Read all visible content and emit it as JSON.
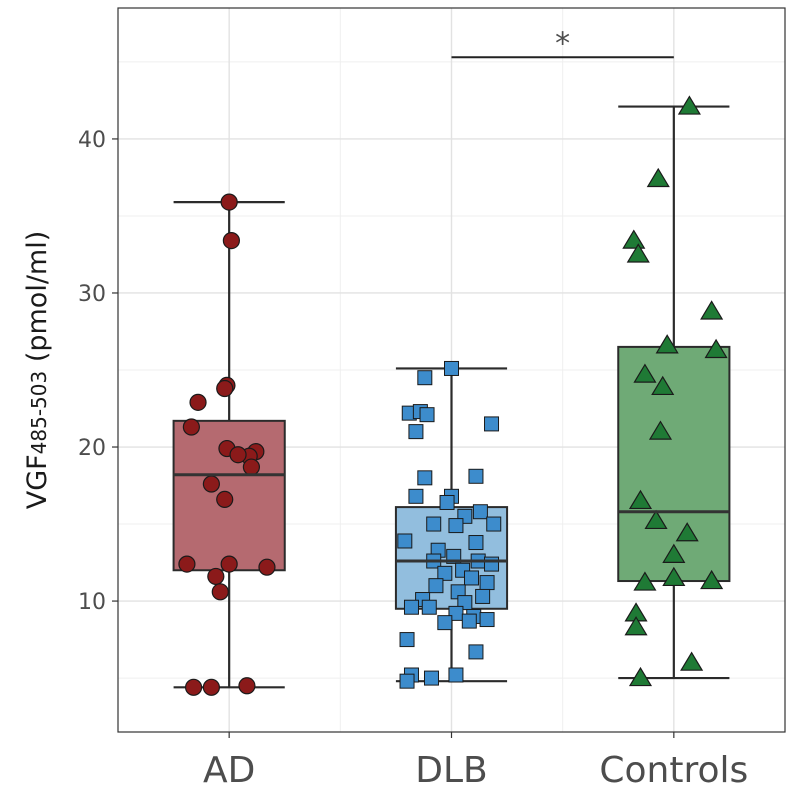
{
  "chart_data": {
    "type": "box",
    "ylabel_main": "VGF",
    "ylabel_sub": "485-503",
    "ylabel_unit": " (pmol/ml)",
    "ylim": [
      1.5,
      48.5
    ],
    "y_ticks": [
      10,
      20,
      30,
      40
    ],
    "categories": [
      "AD",
      "DLB",
      "Controls"
    ],
    "significance": {
      "from": "DLB",
      "to": "Controls",
      "y": 45.3,
      "label": "*"
    },
    "grid": true,
    "groups": [
      {
        "name": "AD",
        "fill": "#b56a70",
        "point_fill": "#8b1a1a",
        "marker": "circle",
        "whisker_low": 4.4,
        "q1": 12.0,
        "median": 18.2,
        "q3": 21.7,
        "whisker_high": 35.9,
        "points": [
          [
            -0.16,
            4.4
          ],
          [
            -0.08,
            4.4
          ],
          [
            0.08,
            4.5
          ],
          [
            0.0,
            35.9
          ],
          [
            0.01,
            33.4
          ],
          [
            -0.14,
            22.9
          ],
          [
            -0.01,
            24.0
          ],
          [
            -0.02,
            23.8
          ],
          [
            -0.17,
            21.3
          ],
          [
            -0.01,
            19.9
          ],
          [
            0.12,
            19.7
          ],
          [
            0.09,
            19.4
          ],
          [
            0.04,
            19.5
          ],
          [
            0.1,
            18.7
          ],
          [
            -0.08,
            17.6
          ],
          [
            -0.02,
            16.6
          ],
          [
            -0.19,
            12.4
          ],
          [
            0.0,
            12.4
          ],
          [
            0.17,
            12.2
          ],
          [
            -0.06,
            11.6
          ],
          [
            -0.04,
            10.6
          ]
        ]
      },
      {
        "name": "DLB",
        "fill": "#92bede",
        "point_fill": "#3d8ccc",
        "marker": "square",
        "whisker_low": 4.8,
        "q1": 9.5,
        "median": 12.6,
        "q3": 16.1,
        "whisker_high": 25.1,
        "points": [
          [
            0.0,
            25.1
          ],
          [
            -0.12,
            24.5
          ],
          [
            -0.19,
            22.2
          ],
          [
            -0.14,
            22.3
          ],
          [
            -0.11,
            22.1
          ],
          [
            -0.16,
            21.0
          ],
          [
            0.18,
            21.5
          ],
          [
            -0.12,
            18.0
          ],
          [
            0.11,
            18.1
          ],
          [
            -0.16,
            16.8
          ],
          [
            0.0,
            16.8
          ],
          [
            -0.02,
            16.4
          ],
          [
            0.13,
            15.8
          ],
          [
            0.06,
            15.5
          ],
          [
            0.19,
            15.0
          ],
          [
            -0.08,
            15.0
          ],
          [
            0.02,
            14.9
          ],
          [
            -0.21,
            13.9
          ],
          [
            0.11,
            13.8
          ],
          [
            -0.06,
            13.3
          ],
          [
            0.01,
            12.9
          ],
          [
            -0.08,
            12.6
          ],
          [
            0.12,
            12.6
          ],
          [
            0.18,
            12.4
          ],
          [
            0.05,
            12.0
          ],
          [
            -0.03,
            11.8
          ],
          [
            0.09,
            11.5
          ],
          [
            0.16,
            11.2
          ],
          [
            -0.07,
            11.0
          ],
          [
            0.03,
            10.6
          ],
          [
            0.14,
            10.3
          ],
          [
            -0.13,
            10.1
          ],
          [
            0.06,
            9.9
          ],
          [
            -0.1,
            9.6
          ],
          [
            -0.18,
            9.6
          ],
          [
            0.02,
            9.2
          ],
          [
            0.1,
            9.0
          ],
          [
            0.16,
            8.8
          ],
          [
            0.08,
            8.7
          ],
          [
            -0.03,
            8.6
          ],
          [
            -0.2,
            7.5
          ],
          [
            0.11,
            6.7
          ],
          [
            -0.18,
            5.2
          ],
          [
            -0.09,
            5.0
          ],
          [
            -0.2,
            4.8
          ],
          [
            0.02,
            5.2
          ]
        ]
      },
      {
        "name": "Controls",
        "fill": "#6faa76",
        "point_fill": "#1f7a35",
        "marker": "triangle",
        "whisker_low": 5.0,
        "q1": 11.3,
        "median": 15.8,
        "q3": 26.5,
        "whisker_high": 42.1,
        "points": [
          [
            0.07,
            42.1
          ],
          [
            -0.07,
            37.4
          ],
          [
            -0.18,
            33.4
          ],
          [
            -0.16,
            32.5
          ],
          [
            0.17,
            28.8
          ],
          [
            0.19,
            26.3
          ],
          [
            -0.03,
            26.6
          ],
          [
            -0.13,
            24.7
          ],
          [
            -0.05,
            23.9
          ],
          [
            -0.06,
            21.0
          ],
          [
            -0.15,
            16.5
          ],
          [
            -0.08,
            15.2
          ],
          [
            0.06,
            14.4
          ],
          [
            0.0,
            13.0
          ],
          [
            -0.13,
            11.2
          ],
          [
            0.0,
            11.5
          ],
          [
            0.17,
            11.3
          ],
          [
            -0.17,
            9.2
          ],
          [
            -0.17,
            8.3
          ],
          [
            0.08,
            6.0
          ],
          [
            -0.15,
            5.0
          ]
        ]
      }
    ]
  }
}
